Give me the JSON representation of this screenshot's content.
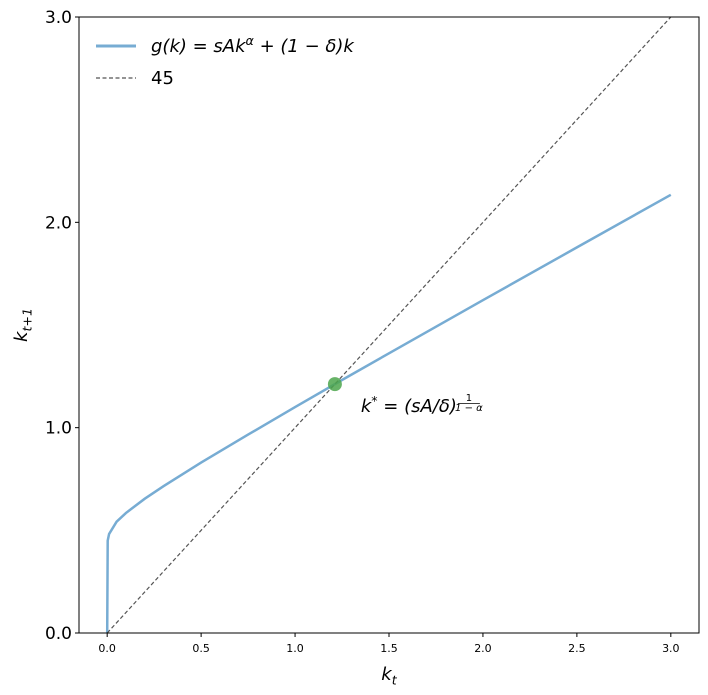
{
  "chart_data": {
    "type": "line",
    "title": "",
    "xlabel": "k_t",
    "ylabel": "k_{t+1}",
    "xlim": [
      -0.15,
      3.15
    ],
    "ylim": [
      0,
      3
    ],
    "grid": false,
    "legend_placement": "top-left",
    "x_ticks": [
      "0.0",
      "0.5",
      "1.0",
      "1.5",
      "2.0",
      "2.5",
      "3.0"
    ],
    "x_tick_values": [
      0,
      0.5,
      1,
      1.5,
      2,
      2.5,
      3
    ],
    "y_ticks": [
      "0.0",
      "1.0",
      "2.0",
      "3.0"
    ],
    "y_tick_values": [
      0,
      1,
      2,
      3
    ],
    "series": [
      {
        "name": "g(k) = sAk^α + (1 − δ)k",
        "color": "#77acd3",
        "style": "solid",
        "x": [
          0,
          0.003,
          0.01,
          0.05,
          0.1,
          0.2,
          0.3,
          0.5,
          0.75,
          1.0,
          1.25,
          1.5,
          2.0,
          2.5,
          3.0
        ],
        "y": [
          0,
          0.45,
          0.482,
          0.542,
          0.585,
          0.654,
          0.715,
          0.83,
          0.966,
          1.1,
          1.232,
          1.362,
          1.621,
          1.878,
          2.134
        ]
      },
      {
        "name": "45",
        "color": "#555555",
        "style": "dashed",
        "x": [
          0,
          3.0
        ],
        "y": [
          0,
          3.0
        ]
      }
    ],
    "points": [
      {
        "x": 1.212,
        "y": 1.212,
        "color": "#4ca64c"
      }
    ],
    "annotations": [
      {
        "text": "k^* = (sA/δ)",
        "exponent_numerator": "1",
        "exponent_denominator": "1 − α",
        "x": 1.35,
        "y": 1.1
      }
    ]
  }
}
